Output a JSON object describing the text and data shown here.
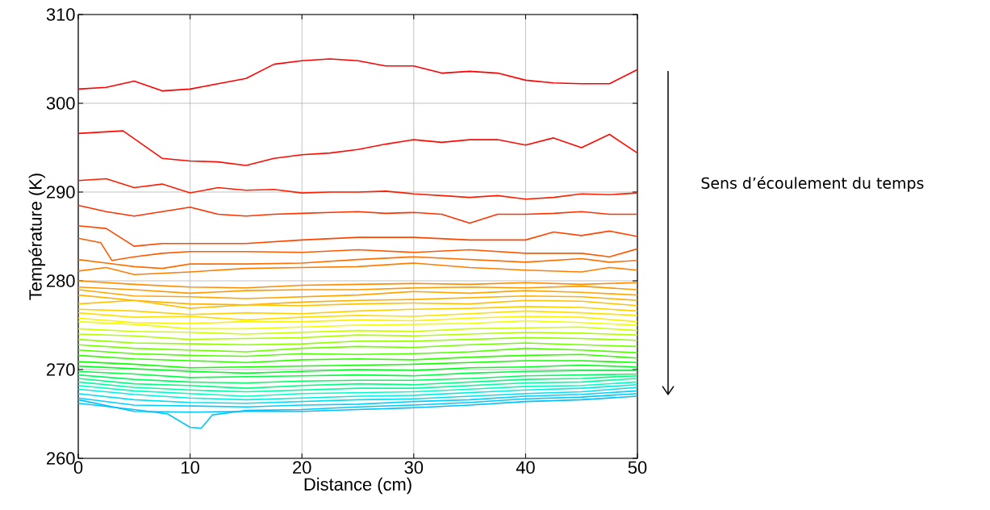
{
  "chart_data": {
    "type": "line",
    "xlabel": "Distance (cm)",
    "ylabel": "Température (K)",
    "annotations": [
      "Sens d’écoulement du temps"
    ],
    "xlim": [
      0,
      50
    ],
    "ylim": [
      260,
      310
    ],
    "xticks": [
      0,
      10,
      20,
      30,
      40,
      50
    ],
    "yticks": [
      260,
      270,
      280,
      290,
      300,
      310
    ],
    "grid": true,
    "marker": "none",
    "line_style": "solid",
    "x": [
      0,
      5,
      10,
      15,
      20,
      25,
      30,
      35,
      40,
      45,
      50
    ],
    "series": [
      {
        "color": "#ff0000",
        "x": [
          0,
          2.5,
          5,
          7.5,
          10,
          12.5,
          15,
          17.5,
          20,
          22.5,
          25,
          27.5,
          30,
          32.5,
          35,
          37.5,
          40,
          42.5,
          45,
          47.5,
          50
        ],
        "values": [
          301.6,
          301.8,
          302.5,
          301.4,
          301.6,
          302.2,
          302.8,
          304.4,
          304.8,
          305.0,
          304.8,
          304.2,
          304.2,
          303.4,
          303.6,
          303.4,
          302.6,
          302.3,
          302.2,
          302.2,
          303.8
        ]
      },
      {
        "color": "#ff0a00",
        "x": [
          0,
          4,
          7.5,
          10,
          12.5,
          15,
          17.5,
          20,
          22.5,
          25,
          27.5,
          30,
          32.5,
          35,
          37.5,
          40,
          42.5,
          45,
          47.5,
          50
        ],
        "values": [
          296.6,
          296.9,
          293.8,
          293.5,
          293.4,
          293.0,
          293.8,
          294.2,
          294.4,
          294.8,
          295.4,
          295.9,
          295.6,
          295.9,
          295.9,
          295.3,
          296.1,
          295.0,
          296.5,
          294.4
        ]
      },
      {
        "color": "#ff1e00",
        "x": [
          0,
          2.5,
          5,
          7.5,
          10,
          12.5,
          15,
          17.5,
          20,
          22.5,
          25,
          27.5,
          30,
          32.5,
          35,
          37.5,
          40,
          42.5,
          45,
          47.5,
          50
        ],
        "values": [
          291.3,
          291.5,
          290.5,
          290.9,
          289.9,
          290.5,
          290.2,
          290.3,
          289.9,
          290.0,
          290.0,
          290.1,
          289.8,
          289.6,
          289.4,
          289.6,
          289.2,
          289.4,
          289.8,
          289.7,
          289.9
        ]
      },
      {
        "color": "#ff3200",
        "x": [
          0,
          2.5,
          5,
          7.5,
          10,
          12.5,
          15,
          17.5,
          20,
          22.5,
          25,
          27.5,
          30,
          32.5,
          35,
          37.5,
          40,
          42.5,
          45,
          47.5,
          50
        ],
        "values": [
          288.5,
          287.8,
          287.3,
          287.8,
          288.3,
          287.5,
          287.3,
          287.5,
          287.6,
          287.7,
          287.8,
          287.6,
          287.7,
          287.5,
          286.5,
          287.5,
          287.5,
          287.6,
          287.8,
          287.5,
          287.5
        ]
      },
      {
        "color": "#ff4600",
        "x": [
          0,
          2.5,
          5,
          7.5,
          10,
          15,
          20,
          25,
          30,
          35,
          40,
          42.5,
          45,
          47.5,
          50
        ],
        "values": [
          286.2,
          285.9,
          283.9,
          284.2,
          284.2,
          284.2,
          284.6,
          284.9,
          284.9,
          284.6,
          284.6,
          285.5,
          285.1,
          285.6,
          285.0
        ]
      },
      {
        "color": "#ff5a00",
        "x": [
          0,
          2,
          3,
          5,
          7.5,
          10,
          15,
          20,
          25,
          30,
          35,
          40,
          45,
          47.5,
          50
        ],
        "values": [
          284.8,
          284.3,
          282.3,
          282.7,
          283.1,
          283.3,
          283.3,
          283.2,
          283.5,
          283.2,
          283.5,
          283.1,
          283.1,
          282.7,
          283.6
        ]
      },
      {
        "color": "#ff6e00",
        "x": [
          0,
          2.5,
          5,
          7.5,
          10,
          15,
          20,
          25,
          30,
          35,
          40,
          45,
          47.5,
          50
        ],
        "values": [
          282.4,
          282.0,
          281.6,
          281.4,
          281.9,
          281.9,
          282.0,
          282.4,
          282.7,
          282.4,
          282.1,
          282.5,
          282.1,
          282.3
        ]
      },
      {
        "color": "#ff7d00",
        "x": [
          0,
          2.5,
          5,
          10,
          15,
          20,
          25,
          30,
          35,
          40,
          45,
          47.5,
          50
        ],
        "values": [
          281.1,
          281.5,
          280.7,
          281.0,
          281.4,
          281.5,
          281.6,
          282.0,
          281.5,
          281.2,
          281.0,
          281.5,
          281.2
        ]
      },
      {
        "color": "#ff8c00",
        "values": [
          280.0,
          279.6,
          279.3,
          279.2,
          279.5,
          279.6,
          279.7,
          279.6,
          279.8,
          279.6,
          279.8
        ]
      },
      {
        "color": "#ff9900",
        "values": [
          279.3,
          279.0,
          278.6,
          278.9,
          279.0,
          279.0,
          279.2,
          279.3,
          279.2,
          279.4,
          279.0
        ]
      },
      {
        "color": "#ffa500",
        "values": [
          279.0,
          278.3,
          278.2,
          278.0,
          278.2,
          278.4,
          278.8,
          278.6,
          278.9,
          278.7,
          278.4
        ]
      },
      {
        "color": "#ffb000",
        "values": [
          278.4,
          277.8,
          277.4,
          277.3,
          277.6,
          277.8,
          277.9,
          278.1,
          278.3,
          278.2,
          277.8
        ]
      },
      {
        "color": "#ffc000",
        "values": [
          277.4,
          277.8,
          276.9,
          277.3,
          277.2,
          277.4,
          277.5,
          277.4,
          277.8,
          277.7,
          277.2
        ]
      },
      {
        "color": "#ffd000",
        "values": [
          276.8,
          276.6,
          276.2,
          276.4,
          276.3,
          276.6,
          276.8,
          276.9,
          277.1,
          277.0,
          276.6
        ]
      },
      {
        "color": "#ffe000",
        "values": [
          276.4,
          275.9,
          276.0,
          275.6,
          275.9,
          276.1,
          276.0,
          276.3,
          276.6,
          276.4,
          276.1
        ]
      },
      {
        "color": "#fff000",
        "values": [
          275.8,
          275.3,
          275.2,
          275.4,
          275.4,
          275.6,
          275.5,
          275.8,
          276.0,
          275.9,
          275.4
        ]
      },
      {
        "color": "#eeff00",
        "values": [
          275.4,
          275.1,
          274.6,
          274.6,
          274.8,
          275.0,
          275.1,
          275.2,
          275.5,
          275.3,
          275.0
        ]
      },
      {
        "color": "#ccff00",
        "values": [
          274.6,
          274.3,
          274.2,
          274.0,
          274.2,
          274.4,
          274.3,
          274.6,
          274.7,
          274.8,
          274.4
        ]
      },
      {
        "color": "#b0ff00",
        "values": [
          274.0,
          273.8,
          273.4,
          273.5,
          273.6,
          273.9,
          273.8,
          274.0,
          274.2,
          274.1,
          273.9
        ]
      },
      {
        "color": "#90ff00",
        "values": [
          273.4,
          273.0,
          272.9,
          272.8,
          272.9,
          273.2,
          273.2,
          273.4,
          273.6,
          273.5,
          273.3
        ]
      },
      {
        "color": "#70ff00",
        "values": [
          272.8,
          272.4,
          272.2,
          272.0,
          272.4,
          272.6,
          272.5,
          272.8,
          273.0,
          272.8,
          272.6
        ]
      },
      {
        "color": "#50ff00",
        "values": [
          272.2,
          271.8,
          271.6,
          271.5,
          271.8,
          271.7,
          271.8,
          272.0,
          272.4,
          272.2,
          271.9
        ]
      },
      {
        "color": "#30ff00",
        "values": [
          271.6,
          271.2,
          271.0,
          270.8,
          271.1,
          271.2,
          271.1,
          271.4,
          271.6,
          271.7,
          271.3
        ]
      },
      {
        "color": "#10ff00",
        "values": [
          270.9,
          270.6,
          270.2,
          270.3,
          270.4,
          270.5,
          270.6,
          270.8,
          271.0,
          271.0,
          270.8
        ]
      },
      {
        "color": "#00ff20",
        "values": [
          270.4,
          270.1,
          269.8,
          269.6,
          269.8,
          270.0,
          269.9,
          270.2,
          270.3,
          270.5,
          270.3
        ]
      },
      {
        "color": "#00ff40",
        "values": [
          269.8,
          269.5,
          269.1,
          269.2,
          269.3,
          269.4,
          269.3,
          269.6,
          269.8,
          269.9,
          269.9
        ]
      },
      {
        "color": "#00ff60",
        "values": [
          269.4,
          268.9,
          268.6,
          268.5,
          268.7,
          268.8,
          268.8,
          269.0,
          269.3,
          269.4,
          269.5
        ]
      },
      {
        "color": "#00ff80",
        "values": [
          269.0,
          268.4,
          268.2,
          267.9,
          268.2,
          268.4,
          268.3,
          268.6,
          268.9,
          269.0,
          269.3
        ]
      },
      {
        "color": "#00ffa0",
        "values": [
          268.6,
          268.0,
          267.7,
          267.5,
          267.7,
          267.9,
          267.9,
          268.2,
          268.5,
          268.6,
          269.0
        ]
      },
      {
        "color": "#00ffc0",
        "values": [
          268.2,
          267.6,
          267.3,
          267.0,
          267.3,
          267.4,
          267.5,
          267.8,
          268.1,
          268.2,
          268.6
        ]
      },
      {
        "color": "#00f0e0",
        "values": [
          267.8,
          267.2,
          266.8,
          266.6,
          266.8,
          267.0,
          267.1,
          267.4,
          267.7,
          267.9,
          268.3
        ]
      },
      {
        "color": "#00e0f0",
        "values": [
          267.3,
          266.6,
          266.3,
          266.2,
          266.4,
          266.6,
          266.7,
          267.0,
          267.3,
          267.5,
          268.0
        ]
      },
      {
        "color": "#00d0ff",
        "values": [
          266.8,
          266.0,
          265.9,
          265.8,
          266.0,
          266.1,
          266.4,
          266.6,
          267.0,
          267.2,
          267.6
        ]
      },
      {
        "color": "#00c8ff",
        "x": [
          0,
          5,
          8,
          10,
          11,
          12,
          15,
          20,
          25,
          30,
          35,
          40,
          45,
          50
        ],
        "values": [
          266.2,
          265.5,
          265.0,
          263.5,
          263.4,
          264.9,
          265.4,
          265.5,
          265.8,
          266.0,
          266.3,
          266.7,
          266.9,
          267.3
        ]
      },
      {
        "color": "#00c0ff",
        "values": [
          266.6,
          265.3,
          265.2,
          265.3,
          265.3,
          265.5,
          265.7,
          266.0,
          266.4,
          266.6,
          267.0
        ]
      }
    ]
  }
}
